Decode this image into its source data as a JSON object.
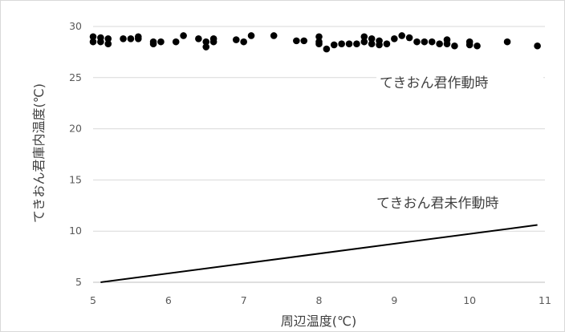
{
  "chart_data": {
    "type": "scatter",
    "xlabel": "周辺温度(℃)",
    "ylabel": "てきおん君庫内温度(℃)",
    "xlim": [
      5,
      11
    ],
    "ylim": [
      5,
      30
    ],
    "x_ticks": [
      5,
      6,
      7,
      8,
      9,
      10,
      11
    ],
    "y_ticks": [
      5,
      10,
      15,
      20,
      25,
      30
    ],
    "grid": "horizontal",
    "annotations": [
      "てきおん君作動時",
      "てきおん君未作動時"
    ],
    "series": [
      {
        "name": "てきおん君作動時",
        "kind": "points",
        "color": "#000000",
        "points": [
          [
            5.0,
            29.0
          ],
          [
            5.0,
            28.5
          ],
          [
            5.1,
            28.9
          ],
          [
            5.1,
            28.5
          ],
          [
            5.2,
            28.8
          ],
          [
            5.2,
            28.3
          ],
          [
            5.4,
            28.8
          ],
          [
            5.5,
            28.8
          ],
          [
            5.6,
            29.0
          ],
          [
            5.6,
            28.8
          ],
          [
            5.8,
            28.5
          ],
          [
            5.8,
            28.3
          ],
          [
            5.9,
            28.5
          ],
          [
            6.1,
            28.5
          ],
          [
            6.2,
            29.1
          ],
          [
            6.4,
            28.8
          ],
          [
            6.5,
            28.5
          ],
          [
            6.5,
            28.0
          ],
          [
            6.6,
            28.8
          ],
          [
            6.6,
            28.5
          ],
          [
            6.9,
            28.7
          ],
          [
            7.0,
            28.5
          ],
          [
            7.1,
            29.1
          ],
          [
            7.4,
            29.1
          ],
          [
            7.7,
            28.6
          ],
          [
            7.8,
            28.6
          ],
          [
            8.0,
            29.0
          ],
          [
            8.0,
            28.5
          ],
          [
            8.0,
            28.3
          ],
          [
            8.1,
            27.8
          ],
          [
            8.2,
            28.2
          ],
          [
            8.3,
            28.3
          ],
          [
            8.4,
            28.3
          ],
          [
            8.5,
            28.3
          ],
          [
            8.6,
            29.0
          ],
          [
            8.6,
            28.5
          ],
          [
            8.7,
            28.8
          ],
          [
            8.7,
            28.3
          ],
          [
            8.8,
            28.6
          ],
          [
            8.8,
            28.2
          ],
          [
            8.9,
            28.3
          ],
          [
            9.0,
            28.8
          ],
          [
            9.1,
            29.1
          ],
          [
            9.2,
            28.9
          ],
          [
            9.3,
            28.5
          ],
          [
            9.4,
            28.5
          ],
          [
            9.5,
            28.5
          ],
          [
            9.6,
            28.3
          ],
          [
            9.7,
            28.7
          ],
          [
            9.7,
            28.3
          ],
          [
            9.8,
            28.1
          ],
          [
            10.0,
            28.5
          ],
          [
            10.0,
            28.2
          ],
          [
            10.1,
            28.1
          ],
          [
            10.5,
            28.5
          ],
          [
            10.9,
            28.1
          ]
        ]
      },
      {
        "name": "てきおん君未作動時",
        "kind": "line",
        "color": "#000000",
        "points": [
          [
            5.1,
            5.0
          ],
          [
            10.9,
            10.6
          ]
        ]
      }
    ]
  }
}
